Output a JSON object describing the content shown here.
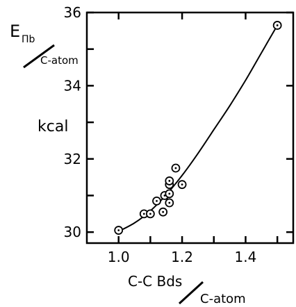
{
  "chart_data": {
    "type": "scatter",
    "title": "",
    "ylabel_main": "E",
    "ylabel_sub": "Πb",
    "ylabel_denom": "C-atom",
    "ylabel_unit": "kcal",
    "xlabel_main": "C-C Bds",
    "xlabel_denom": "C-atom",
    "xlim": [
      0.9,
      1.55
    ],
    "ylim": [
      29.7,
      36.0
    ],
    "xticks": [
      1.0,
      1.2,
      1.4
    ],
    "xtick_labels": [
      "1.0",
      "1.2",
      "1.4"
    ],
    "yticks": [
      30,
      32,
      34,
      36
    ],
    "ytick_labels": [
      "30",
      "32",
      "34",
      "36"
    ],
    "points": [
      {
        "x": 1.0,
        "y": 30.05
      },
      {
        "x": 1.08,
        "y": 30.5
      },
      {
        "x": 1.1,
        "y": 30.5
      },
      {
        "x": 1.12,
        "y": 30.85
      },
      {
        "x": 1.14,
        "y": 30.55
      },
      {
        "x": 1.145,
        "y": 31.0
      },
      {
        "x": 1.16,
        "y": 30.8
      },
      {
        "x": 1.16,
        "y": 31.05
      },
      {
        "x": 1.16,
        "y": 31.3
      },
      {
        "x": 1.16,
        "y": 31.4
      },
      {
        "x": 1.18,
        "y": 31.75
      },
      {
        "x": 1.2,
        "y": 31.3
      },
      {
        "x": 1.5,
        "y": 35.65
      }
    ],
    "curve": {
      "x": [
        1.0,
        1.05,
        1.1,
        1.15,
        1.2,
        1.25,
        1.3,
        1.35,
        1.4,
        1.45,
        1.5
      ],
      "y": [
        30.02,
        30.25,
        30.58,
        31.02,
        31.55,
        32.15,
        32.8,
        33.45,
        34.15,
        34.9,
        35.65
      ]
    },
    "grid": false,
    "legend": "none"
  }
}
